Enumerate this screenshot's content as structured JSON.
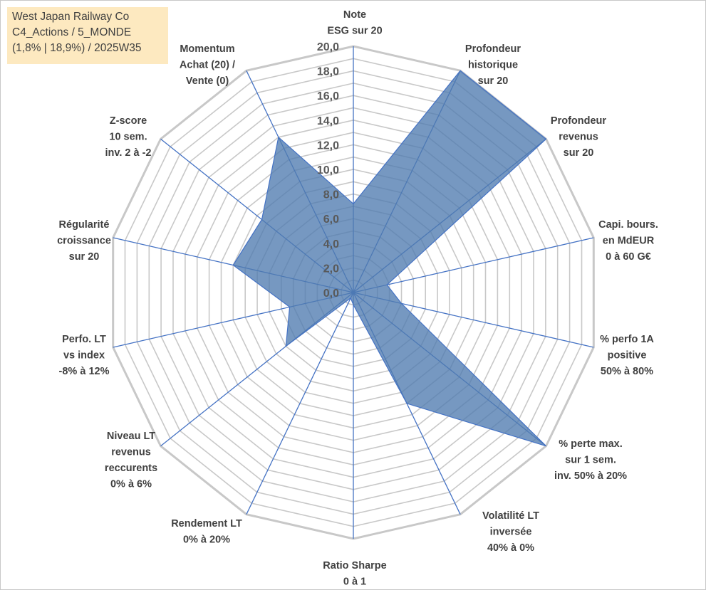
{
  "title_box": {
    "lines": [
      "West Japan Railway Co",
      "C4_Actions / 5_MONDE",
      "(1,8% | 18,9%) / 2025W35"
    ]
  },
  "colors": {
    "grid": "#c8c8c8",
    "spoke": "#4472c4",
    "fill": "#4f7bb0",
    "title_bg": "#fde9c0",
    "text": "#404040"
  },
  "chart_data": {
    "type": "radar",
    "rmin": 0,
    "rmax": 20,
    "grid_step": 1,
    "grid": true,
    "tick_labels": [
      "0,0",
      "2,0",
      "4,0",
      "6,0",
      "8,0",
      "10,0",
      "12,0",
      "14,0",
      "16,0",
      "18,0",
      "20,0"
    ],
    "axes": [
      {
        "label": [
          "Note",
          "ESG sur 20"
        ],
        "value": 7.2
      },
      {
        "label": [
          "Profondeur",
          "historique",
          "sur 20"
        ],
        "value": 20.0
      },
      {
        "label": [
          "Profondeur",
          "revenus",
          "sur 20"
        ],
        "value": 20.0
      },
      {
        "label": [
          "Capi. bours.",
          "en MdEUR",
          "0 à 60 G€"
        ],
        "value": 2.8
      },
      {
        "label": [
          "% perfo 1A",
          "positive",
          "50% à 80%"
        ],
        "value": 4.0
      },
      {
        "label": [
          "% perte max.",
          "sur 1 sem.",
          "inv. 50% à 20%"
        ],
        "value": 20.0
      },
      {
        "label": [
          "Volatilité LT",
          "inversée",
          "40% à 0%"
        ],
        "value": 10.0
      },
      {
        "label": [
          "Ratio Sharpe",
          "0 à 1"
        ],
        "value": 1.0
      },
      {
        "label": [
          "Rendement LT",
          "0% à 20%"
        ],
        "value": 0.5
      },
      {
        "label": [
          "Niveau LT",
          "revenus",
          "reccurents",
          "0% à 6%"
        ],
        "value": 7.0
      },
      {
        "label": [
          "Perfo. LT",
          "vs index",
          "-8% à 12%"
        ],
        "value": 5.3
      },
      {
        "label": [
          "Régularité",
          "croissance",
          "sur 20"
        ],
        "value": 10.0
      },
      {
        "label": [
          "Z-score",
          "10 sem.",
          "inv. 2 à -2"
        ],
        "value": 9.5
      },
      {
        "label": [
          "Momentum",
          "Achat (20) /",
          "Vente (0)"
        ],
        "value": 14.0
      }
    ]
  }
}
